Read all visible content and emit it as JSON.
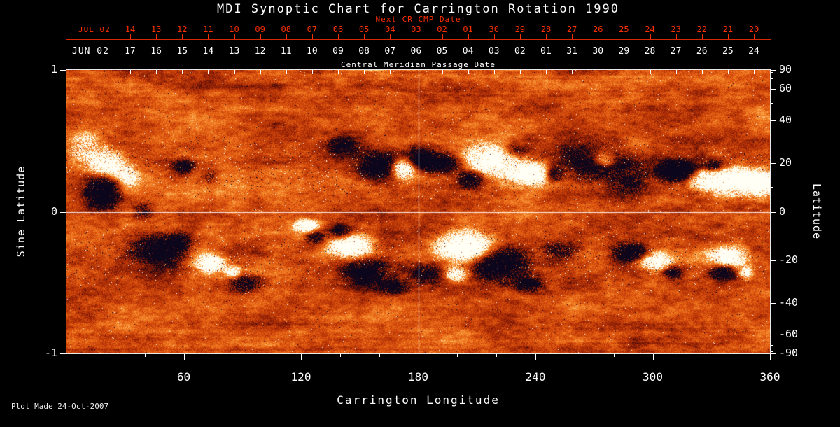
{
  "title": "MDI Synoptic Chart for Carrington Rotation 1990",
  "footer_note": "Plot Made 24-Oct-2007",
  "colors": {
    "background": "#000000",
    "axis_text": "#ffffff",
    "next_cr_red": "#ff3000",
    "quiet_sun_orange": "#d9480f",
    "positive_polarity": "#fffff5",
    "negative_polarity": "#0c061c"
  },
  "top_axis_next_cr": {
    "title": "Next CR CMP Date",
    "month_label": "JUL 02",
    "tick_labels": [
      "14",
      "13",
      "12",
      "11",
      "10",
      "09",
      "08",
      "07",
      "06",
      "05",
      "04",
      "03",
      "02",
      "01",
      "30",
      "29",
      "28",
      "27",
      "26",
      "25",
      "24",
      "23",
      "22",
      "21",
      "20"
    ]
  },
  "top_axis_cmp": {
    "title": "Central Meridian Passage Date",
    "month_label": "JUN 02",
    "tick_labels": [
      "17",
      "16",
      "15",
      "14",
      "13",
      "12",
      "11",
      "10",
      "09",
      "08",
      "07",
      "06",
      "05",
      "04",
      "03",
      "02",
      "01",
      "31",
      "30",
      "29",
      "28",
      "27",
      "26",
      "25",
      "24"
    ]
  },
  "bottom_axis": {
    "label": "Carrington Longitude",
    "tick_labels": [
      "60",
      "120",
      "180",
      "240",
      "300",
      "360"
    ]
  },
  "left_axis": {
    "label": "Sine Latitude",
    "tick_labels": [
      "1",
      "0",
      "-1"
    ]
  },
  "right_axis": {
    "label": "Latitude",
    "tick_labels": [
      "90",
      "60",
      "40",
      "20",
      "0",
      "-20",
      "-40",
      "-60",
      "-90"
    ]
  },
  "chart_data": {
    "type": "heatmap",
    "title": "MDI Synoptic Chart for Carrington Rotation 1990",
    "xlabel": "Carrington Longitude",
    "ylabel_left": "Sine Latitude",
    "ylabel_right": "Latitude",
    "x_range": [
      0,
      360
    ],
    "y_range_sine_latitude": [
      -1,
      1
    ],
    "x_ticks": [
      60,
      120,
      180,
      240,
      300,
      360
    ],
    "x_minor_tick_step": 20,
    "y_ticks_left": [
      1,
      0,
      -1
    ],
    "y_ticks_right": [
      90,
      60,
      40,
      20,
      0,
      -20,
      -40,
      -60,
      -90
    ],
    "reference_lines": {
      "longitude": 180,
      "sine_latitude": 0
    },
    "legend": "Solar photospheric magnetogram: orange = quiet Sun, white = positive magnetic polarity flux, black = negative magnetic polarity flux; active regions concentrated in two latitude bands near +/-20 degrees",
    "active_regions": [
      {
        "lon": 18.6,
        "slat": 0.16,
        "rlon": 8,
        "rslat": 0.13,
        "pol": -1,
        "s": 1.45
      },
      {
        "lon": 20.8,
        "slat": 0.32,
        "rlon": 9,
        "rslat": 0.1,
        "pol": 1,
        "s": 1.25
      },
      {
        "lon": 9,
        "slat": 0.46,
        "rlon": 10,
        "rslat": 0.12,
        "pol": 1,
        "s": 0.55
      },
      {
        "lon": 32,
        "slat": 0.24,
        "rlon": 6,
        "rslat": 0.07,
        "pol": 1,
        "s": 0.55
      },
      {
        "lon": 39,
        "slat": 0.01,
        "rlon": 5,
        "rslat": 0.06,
        "pol": -1,
        "s": 0.5
      },
      {
        "lon": 60,
        "slat": 0.32,
        "rlon": 5,
        "rslat": 0.05,
        "pol": -1,
        "s": 0.85
      },
      {
        "lon": 73,
        "slat": 0.24,
        "rlon": 4,
        "rslat": 0.05,
        "pol": -1,
        "s": 0.45
      },
      {
        "lon": 141,
        "slat": 0.47,
        "rlon": 7,
        "rslat": 0.06,
        "pol": -1,
        "s": 0.7
      },
      {
        "lon": 161,
        "slat": 0.33,
        "rlon": 10,
        "rslat": 0.09,
        "pol": -1,
        "s": 1.05
      },
      {
        "lon": 172,
        "slat": 0.31,
        "rlon": 7,
        "rslat": 0.07,
        "pol": 1,
        "s": 1.35
      },
      {
        "lon": 181,
        "slat": 0.38,
        "rlon": 8,
        "rslat": 0.08,
        "pol": -1,
        "s": 0.9
      },
      {
        "lon": 193,
        "slat": 0.35,
        "rlon": 9,
        "rslat": 0.06,
        "pol": -1,
        "s": 0.85
      },
      {
        "lon": 217,
        "slat": 0.37,
        "rlon": 13,
        "rslat": 0.1,
        "pol": 1,
        "s": 1.4
      },
      {
        "lon": 207,
        "slat": 0.24,
        "rlon": 7,
        "rslat": 0.06,
        "pol": -1,
        "s": 0.95
      },
      {
        "lon": 237,
        "slat": 0.27,
        "rlon": 11,
        "rslat": 0.08,
        "pol": 1,
        "s": 1.25
      },
      {
        "lon": 229,
        "slat": 0.43,
        "rlon": 7,
        "rslat": 0.05,
        "pol": -1,
        "s": 0.7
      },
      {
        "lon": 249,
        "slat": 0.26,
        "rlon": 5,
        "rslat": 0.05,
        "pol": -1,
        "s": 0.7
      },
      {
        "lon": 270,
        "slat": 0.33,
        "rlon": 20,
        "rslat": 0.14,
        "pol": -1,
        "s": 0.6
      },
      {
        "lon": 275,
        "slat": 0.37,
        "rlon": 5,
        "rslat": 0.05,
        "pol": 1,
        "s": 0.85
      },
      {
        "lon": 288,
        "slat": 0.19,
        "rlon": 8,
        "rslat": 0.08,
        "pol": -1,
        "s": 0.65
      },
      {
        "lon": 312,
        "slat": 0.29,
        "rlon": 9,
        "rslat": 0.07,
        "pol": -1,
        "s": 1.45
      },
      {
        "lon": 326,
        "slat": 0.24,
        "rlon": 8,
        "rslat": 0.07,
        "pol": 1,
        "s": 1.05
      },
      {
        "lon": 340,
        "slat": 0.22,
        "rlon": 12,
        "rslat": 0.09,
        "pol": 1,
        "s": 1.35
      },
      {
        "lon": 356,
        "slat": 0.2,
        "rlon": 10,
        "rslat": 0.08,
        "pol": 1,
        "s": 1.25
      },
      {
        "lon": 331,
        "slat": 0.32,
        "rlon": 6,
        "rslat": 0.05,
        "pol": -1,
        "s": 0.85
      },
      {
        "lon": 47,
        "slat": -0.27,
        "rlon": 13,
        "rslat": 0.1,
        "pol": -1,
        "s": 1.15
      },
      {
        "lon": 57,
        "slat": -0.21,
        "rlon": 6,
        "rslat": 0.06,
        "pol": -1,
        "s": 0.8
      },
      {
        "lon": 73,
        "slat": -0.36,
        "rlon": 7,
        "rslat": 0.06,
        "pol": 1,
        "s": 1.15
      },
      {
        "lon": 91,
        "slat": -0.51,
        "rlon": 8,
        "rslat": 0.06,
        "pol": -1,
        "s": 0.8
      },
      {
        "lon": 85,
        "slat": -0.42,
        "rlon": 4,
        "rslat": 0.04,
        "pol": 1,
        "s": 0.85
      },
      {
        "lon": 122,
        "slat": -0.1,
        "rlon": 6,
        "rslat": 0.05,
        "pol": 1,
        "s": 1.1
      },
      {
        "lon": 127,
        "slat": -0.18,
        "rlon": 5,
        "rslat": 0.05,
        "pol": -1,
        "s": 0.7
      },
      {
        "lon": 145,
        "slat": -0.24,
        "rlon": 10,
        "rslat": 0.08,
        "pol": 1,
        "s": 1.3
      },
      {
        "lon": 152,
        "slat": -0.42,
        "rlon": 10,
        "rslat": 0.08,
        "pol": -1,
        "s": 1.05
      },
      {
        "lon": 140,
        "slat": -0.14,
        "rlon": 6,
        "rslat": 0.05,
        "pol": -1,
        "s": 0.8
      },
      {
        "lon": 167,
        "slat": -0.53,
        "rlon": 8,
        "rslat": 0.06,
        "pol": -1,
        "s": 0.6
      },
      {
        "lon": 184,
        "slat": -0.43,
        "rlon": 8,
        "rslat": 0.07,
        "pol": -1,
        "s": 0.6
      },
      {
        "lon": 204,
        "slat": -0.24,
        "rlon": 13,
        "rslat": 0.1,
        "pol": 1,
        "s": 1.4
      },
      {
        "lon": 222,
        "slat": -0.37,
        "rlon": 13,
        "rslat": 0.11,
        "pol": -1,
        "s": 1.35
      },
      {
        "lon": 199,
        "slat": -0.44,
        "rlon": 6,
        "rslat": 0.05,
        "pol": 1,
        "s": 0.95
      },
      {
        "lon": 236,
        "slat": -0.51,
        "rlon": 7,
        "rslat": 0.05,
        "pol": -1,
        "s": 0.8
      },
      {
        "lon": 253,
        "slat": -0.28,
        "rlon": 9,
        "rslat": 0.07,
        "pol": -1,
        "s": 0.6
      },
      {
        "lon": 288,
        "slat": -0.29,
        "rlon": 9,
        "rslat": 0.07,
        "pol": -1,
        "s": 1.05
      },
      {
        "lon": 301,
        "slat": -0.35,
        "rlon": 8,
        "rslat": 0.06,
        "pol": 1,
        "s": 1.15
      },
      {
        "lon": 310,
        "slat": -0.43,
        "rlon": 5,
        "rslat": 0.05,
        "pol": -1,
        "s": 0.7
      },
      {
        "lon": 338,
        "slat": -0.32,
        "rlon": 9,
        "rslat": 0.07,
        "pol": 1,
        "s": 1.25
      },
      {
        "lon": 336,
        "slat": -0.42,
        "rlon": 7,
        "rslat": 0.06,
        "pol": -1,
        "s": 1.05
      },
      {
        "lon": 347,
        "slat": -0.43,
        "rlon": 4,
        "rslat": 0.04,
        "pol": 1,
        "s": 0.75
      }
    ]
  }
}
